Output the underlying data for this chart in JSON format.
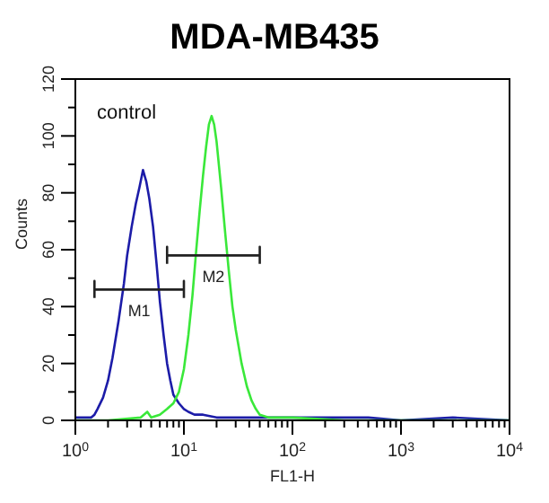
{
  "chart_data": {
    "type": "line",
    "title": "MDA-MB435",
    "xlabel": "FL1-H",
    "ylabel": "Counts",
    "log": "x",
    "marker": "none",
    "line_style": "solid",
    "annotations": [
      "control"
    ],
    "xlim": [
      1,
      10000
    ],
    "ylim": [
      0,
      120
    ],
    "xticks": [
      {
        "value": 1,
        "label": "10$^{0}$"
      },
      {
        "value": 2,
        "label": null
      },
      {
        "value": 3,
        "label": null
      },
      {
        "value": 4,
        "label": null
      },
      {
        "value": 5,
        "label": null
      },
      {
        "value": 6,
        "label": null
      },
      {
        "value": 7,
        "label": null
      },
      {
        "value": 8,
        "label": null
      },
      {
        "value": 9,
        "label": null
      },
      {
        "value": 10,
        "label": "10$^{1}$"
      },
      {
        "value": 20,
        "label": null
      },
      {
        "value": 30,
        "label": null
      },
      {
        "value": 40,
        "label": null
      },
      {
        "value": 50,
        "label": null
      },
      {
        "value": 60,
        "label": null
      },
      {
        "value": 70,
        "label": null
      },
      {
        "value": 80,
        "label": null
      },
      {
        "value": 90,
        "label": null
      },
      {
        "value": 100,
        "label": "10$^{2}$"
      },
      {
        "value": 200,
        "label": null
      },
      {
        "value": 300,
        "label": null
      },
      {
        "value": 400,
        "label": null
      },
      {
        "value": 500,
        "label": null
      },
      {
        "value": 600,
        "label": null
      },
      {
        "value": 700,
        "label": null
      },
      {
        "value": 800,
        "label": null
      },
      {
        "value": 900,
        "label": null
      },
      {
        "value": 1000,
        "label": "10$^{3}$"
      },
      {
        "value": 2000,
        "label": null
      },
      {
        "value": 3000,
        "label": null
      },
      {
        "value": 4000,
        "label": null
      },
      {
        "value": 5000,
        "label": null
      },
      {
        "value": 6000,
        "label": null
      },
      {
        "value": 7000,
        "label": null
      },
      {
        "value": 8000,
        "label": null
      },
      {
        "value": 9000,
        "label": null
      },
      {
        "value": 10000,
        "label": "10$^{4}$"
      }
    ],
    "yticks": [
      0,
      {
        "value": 10,
        "label": null
      },
      20,
      {
        "value": 30,
        "label": null
      },
      40,
      {
        "value": 50,
        "label": null
      },
      60,
      {
        "value": 70,
        "label": null
      },
      80,
      {
        "value": 90,
        "label": null
      },
      100,
      {
        "value": 110,
        "label": null
      },
      120
    ],
    "series": [
      {
        "color": "#1c1ca8",
        "x": [
          1,
          1.2,
          1.4,
          1.5,
          1.6,
          1.8,
          2,
          2.2,
          2.5,
          2.8,
          3,
          3.3,
          3.6,
          3.9,
          4.2,
          4.5,
          4.8,
          5.2,
          5.6,
          6,
          6.5,
          7,
          7.5,
          8,
          9,
          10,
          11,
          12.5,
          15,
          20,
          30,
          50,
          100,
          200,
          500,
          1000,
          3000,
          10000
        ],
        "values": [
          1,
          1,
          1,
          2,
          4,
          8,
          14,
          22,
          35,
          48,
          58,
          68,
          76,
          82,
          88,
          84,
          78,
          68,
          55,
          42,
          30,
          20,
          14,
          9,
          6,
          4,
          3,
          2,
          2,
          1,
          1,
          1,
          1,
          1,
          1,
          0,
          1,
          0
        ]
      },
      {
        "color": "#3ae83a",
        "x": [
          1,
          2,
          4,
          4.6,
          5,
          6,
          7,
          8,
          9,
          10,
          11,
          12,
          13,
          14,
          15,
          16,
          17,
          18,
          19,
          20,
          22,
          24,
          26,
          28,
          30,
          34,
          38,
          42,
          46,
          50,
          60,
          100,
          300,
          1000,
          10000
        ],
        "values": [
          0,
          0,
          1,
          3,
          1,
          2,
          4,
          6,
          10,
          18,
          30,
          44,
          60,
          74,
          86,
          96,
          104,
          107,
          104,
          98,
          82,
          66,
          52,
          40,
          32,
          20,
          12,
          7,
          4,
          2,
          1,
          1,
          0,
          0,
          0
        ]
      },
      {
        "name": "M1",
        "color": "#222222",
        "x": [
          1.5,
          1.5,
          1.5,
          10,
          10,
          10
        ],
        "values": [
          43,
          49,
          46,
          46,
          49,
          43
        ]
      },
      {
        "name": "M2",
        "color": "#222222",
        "x": [
          7,
          7,
          7,
          50,
          50,
          50
        ],
        "values": [
          55,
          61,
          58,
          58,
          61,
          55
        ]
      }
    ]
  }
}
